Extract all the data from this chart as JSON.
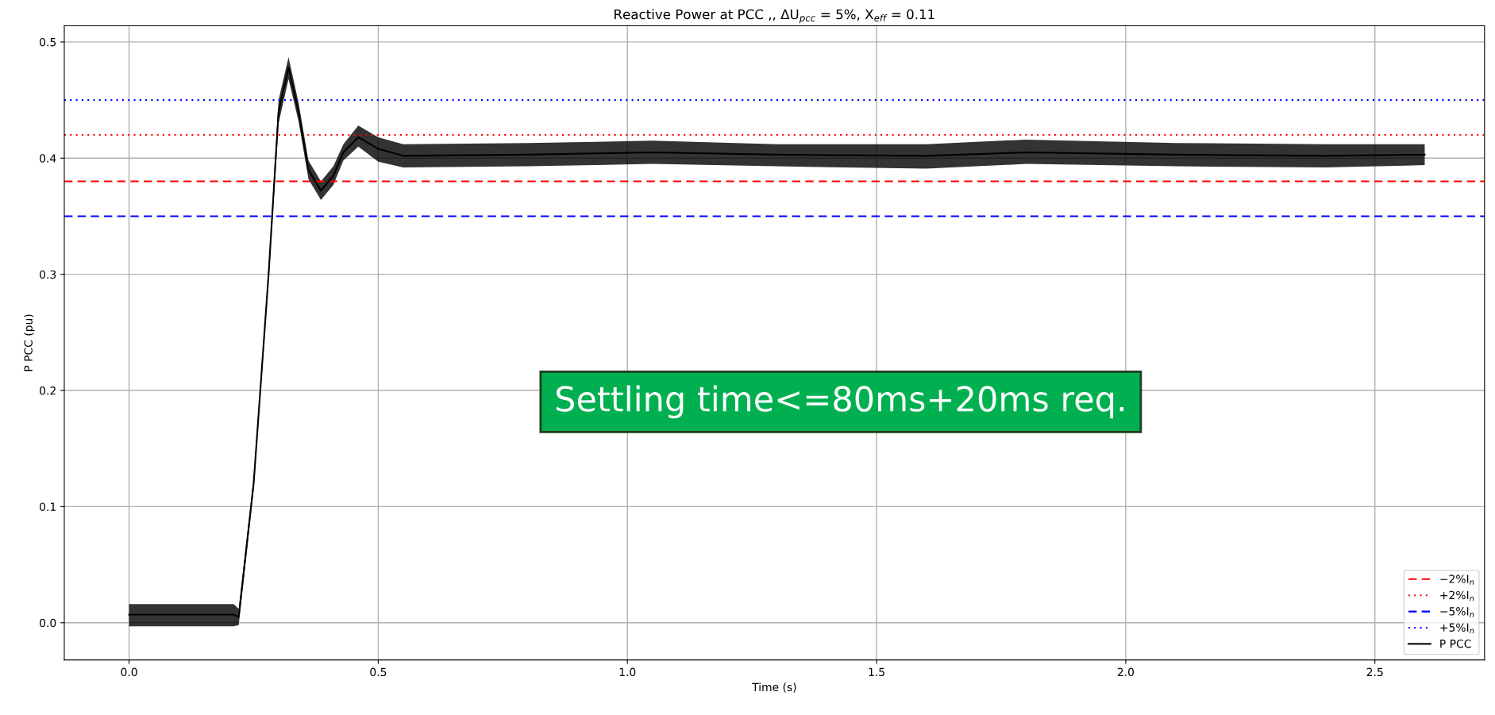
{
  "chart_data": {
    "type": "line",
    "title": "Reactive Power at PCC ,, ΔU$_{pcc}$ = 5%, X$_{eff}$ = 0.11",
    "xlabel": "Time (s)",
    "ylabel": "P PCC (pu)",
    "xlim": [
      -0.13,
      2.72
    ],
    "ylim": [
      -0.032,
      0.514
    ],
    "xticks": [
      {
        "value": 0,
        "label": "0.0"
      },
      0.5,
      {
        "value": 1,
        "label": "1.0"
      },
      1.5,
      {
        "value": 2,
        "label": "2.0"
      },
      2.5
    ],
    "yticks": [
      {
        "value": 0,
        "label": "0.0"
      },
      0.1,
      0.2,
      0.3,
      0.4,
      0.5
    ],
    "grid": true,
    "legend": "bottom right",
    "series": [
      {
        "name": "P PCC",
        "color": "#000000",
        "x": [
          0.0,
          0.1,
          0.21,
          0.22,
          0.25,
          0.28,
          0.3,
          0.32,
          0.34,
          0.36,
          0.385,
          0.41,
          0.43,
          0.46,
          0.5,
          0.55,
          0.8,
          1.05,
          1.3,
          1.6,
          1.8,
          2.1,
          2.4,
          2.6
        ],
        "values": [
          0.007,
          0.007,
          0.007,
          0.005,
          0.12,
          0.3,
          0.44,
          0.478,
          0.44,
          0.39,
          0.372,
          0.385,
          0.405,
          0.418,
          0.408,
          0.402,
          0.403,
          0.405,
          0.403,
          0.402,
          0.405,
          0.403,
          0.402,
          0.403
        ],
        "lower": [
          -0.003,
          -0.003,
          -0.003,
          -0.002,
          0.115,
          0.295,
          0.43,
          0.468,
          0.432,
          0.382,
          0.364,
          0.377,
          0.398,
          0.41,
          0.397,
          0.392,
          0.393,
          0.395,
          0.393,
          0.391,
          0.395,
          0.393,
          0.392,
          0.394
        ],
        "upper": [
          0.016,
          0.016,
          0.016,
          0.012,
          0.125,
          0.305,
          0.45,
          0.487,
          0.448,
          0.398,
          0.38,
          0.393,
          0.412,
          0.428,
          0.418,
          0.412,
          0.413,
          0.415,
          0.412,
          0.412,
          0.416,
          0.413,
          0.412,
          0.412
        ]
      }
    ],
    "ref_lines": [
      {
        "axis": "y",
        "value": 0.38,
        "label": "−2%I$_{n}$",
        "color": "#ff0000",
        "line_style": "dashed"
      },
      {
        "axis": "y",
        "value": 0.42,
        "label": "+2%I$_{n}$",
        "color": "#ff0000",
        "line_style": "dotted"
      },
      {
        "axis": "y",
        "value": 0.35,
        "label": "−5%I$_{n}$",
        "color": "#0000ff",
        "line_style": "dashed"
      },
      {
        "axis": "y",
        "value": 0.45,
        "label": "+5%I$_{n}$",
        "color": "#0000ff",
        "line_style": "dotted"
      }
    ],
    "annotations": [
      "Settling time<=80ms+20ms req."
    ]
  }
}
